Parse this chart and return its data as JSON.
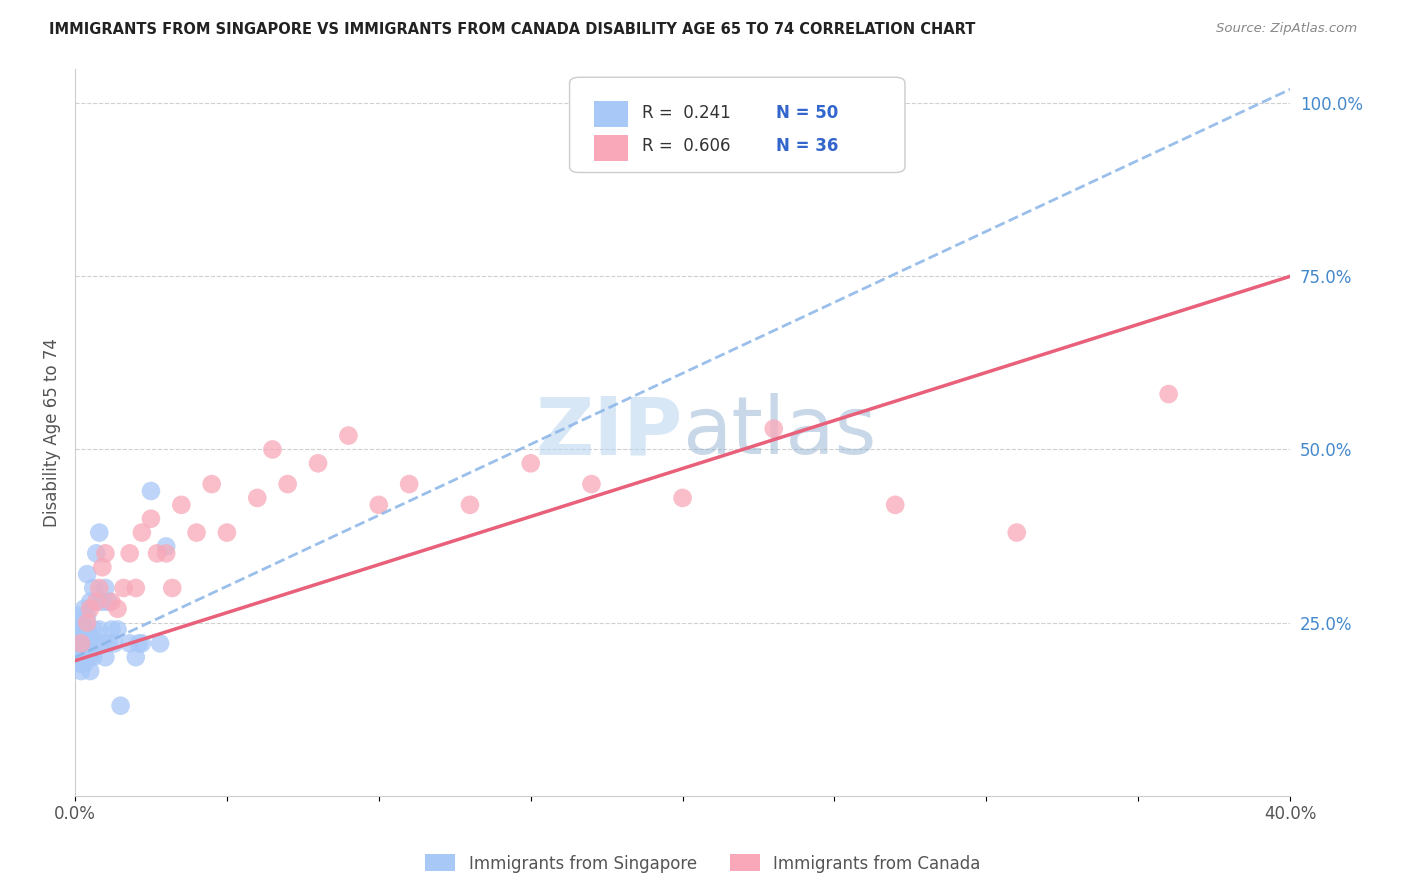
{
  "title": "IMMIGRANTS FROM SINGAPORE VS IMMIGRANTS FROM CANADA DISABILITY AGE 65 TO 74 CORRELATION CHART",
  "source": "Source: ZipAtlas.com",
  "ylabel": "Disability Age 65 to 74",
  "legend_label_1": "Immigrants from Singapore",
  "legend_label_2": "Immigrants from Canada",
  "legend_r1": "R =  0.241",
  "legend_n1": "N = 50",
  "legend_r2": "R =  0.606",
  "legend_n2": "N = 36",
  "color_singapore": "#a8c8f8",
  "color_canada": "#f8a8b8",
  "color_singapore_line": "#8ab4e8",
  "color_canada_line": "#e8607a",
  "watermark_zip": "ZIP",
  "watermark_atlas": "atlas",
  "xlim": [
    0.0,
    0.4
  ],
  "ylim": [
    0.0,
    1.05
  ],
  "singapore_x": [
    0.001,
    0.001,
    0.001,
    0.001,
    0.001,
    0.002,
    0.002,
    0.002,
    0.002,
    0.002,
    0.002,
    0.002,
    0.003,
    0.003,
    0.003,
    0.003,
    0.003,
    0.004,
    0.004,
    0.004,
    0.004,
    0.005,
    0.005,
    0.005,
    0.005,
    0.005,
    0.006,
    0.006,
    0.006,
    0.007,
    0.007,
    0.008,
    0.008,
    0.009,
    0.009,
    0.01,
    0.01,
    0.011,
    0.011,
    0.012,
    0.013,
    0.014,
    0.015,
    0.018,
    0.02,
    0.021,
    0.022,
    0.025,
    0.028,
    0.03
  ],
  "singapore_y": [
    0.2,
    0.22,
    0.23,
    0.24,
    0.26,
    0.18,
    0.19,
    0.2,
    0.21,
    0.22,
    0.24,
    0.25,
    0.19,
    0.2,
    0.22,
    0.24,
    0.27,
    0.2,
    0.22,
    0.26,
    0.32,
    0.18,
    0.2,
    0.21,
    0.23,
    0.28,
    0.2,
    0.24,
    0.3,
    0.22,
    0.35,
    0.24,
    0.38,
    0.22,
    0.28,
    0.2,
    0.3,
    0.22,
    0.28,
    0.24,
    0.22,
    0.24,
    0.13,
    0.22,
    0.2,
    0.22,
    0.22,
    0.44,
    0.22,
    0.36
  ],
  "canada_x": [
    0.002,
    0.004,
    0.005,
    0.007,
    0.008,
    0.009,
    0.01,
    0.012,
    0.014,
    0.016,
    0.018,
    0.02,
    0.022,
    0.025,
    0.027,
    0.03,
    0.032,
    0.035,
    0.04,
    0.045,
    0.05,
    0.06,
    0.065,
    0.07,
    0.08,
    0.09,
    0.1,
    0.11,
    0.13,
    0.15,
    0.17,
    0.2,
    0.23,
    0.27,
    0.31,
    0.36
  ],
  "canada_y": [
    0.22,
    0.25,
    0.27,
    0.28,
    0.3,
    0.33,
    0.35,
    0.28,
    0.27,
    0.3,
    0.35,
    0.3,
    0.38,
    0.4,
    0.35,
    0.35,
    0.3,
    0.42,
    0.38,
    0.45,
    0.38,
    0.43,
    0.5,
    0.45,
    0.48,
    0.52,
    0.42,
    0.45,
    0.42,
    0.48,
    0.45,
    0.43,
    0.53,
    0.42,
    0.38,
    0.58
  ],
  "sg_line_x0": 0.0,
  "sg_line_y0": 0.2,
  "sg_line_x1": 0.4,
  "sg_line_y1": 1.02,
  "ca_line_x0": 0.0,
  "ca_line_y0": 0.195,
  "ca_line_x1": 0.4,
  "ca_line_y1": 0.75,
  "background_color": "#ffffff",
  "grid_color": "#dddddd"
}
